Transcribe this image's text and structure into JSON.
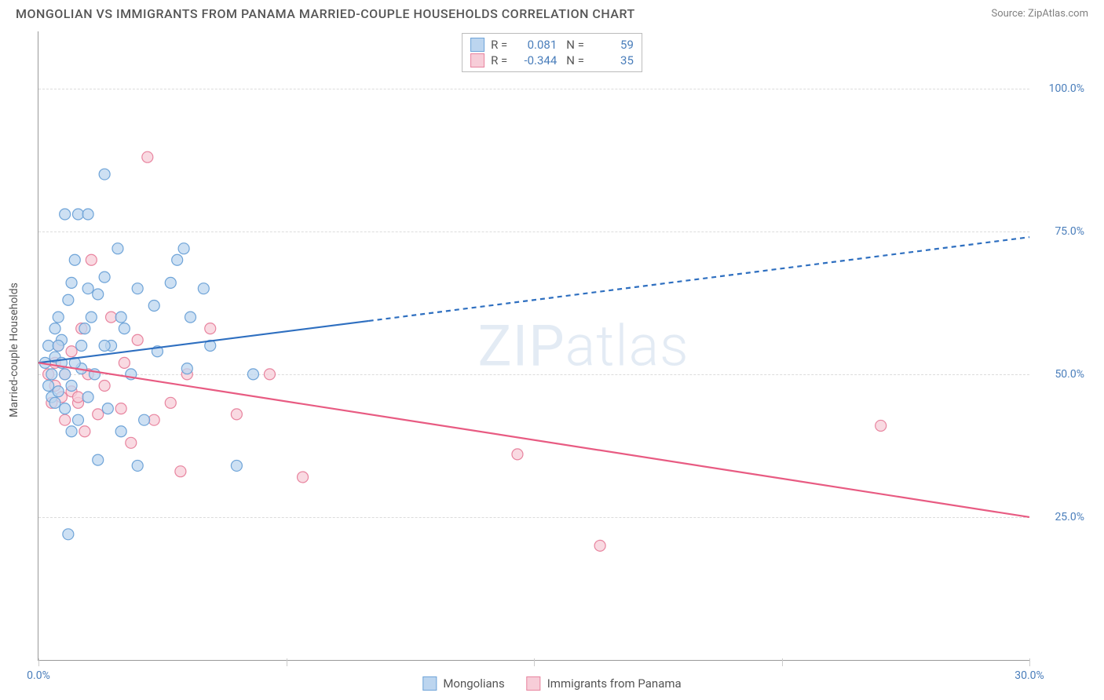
{
  "header": {
    "title": "MONGOLIAN VS IMMIGRANTS FROM PANAMA MARRIED-COUPLE HOUSEHOLDS CORRELATION CHART",
    "source": "Source: ZipAtlas.com"
  },
  "axes": {
    "y_label": "Married-couple Households",
    "x_min": 0,
    "x_max": 30,
    "y_min": 0,
    "y_max": 110,
    "y_ticks": [
      {
        "v": 25,
        "label": "25.0%"
      },
      {
        "v": 50,
        "label": "50.0%"
      },
      {
        "v": 75,
        "label": "75.0%"
      },
      {
        "v": 100,
        "label": "100.0%"
      }
    ],
    "x_ticks": [
      {
        "v": 0,
        "label": "0.0%"
      },
      {
        "v": 7.5,
        "label": ""
      },
      {
        "v": 15,
        "label": ""
      },
      {
        "v": 22.5,
        "label": ""
      },
      {
        "v": 30,
        "label": "30.0%"
      }
    ]
  },
  "series": {
    "a": {
      "name": "Mongolians",
      "fill": "#bcd5ef",
      "stroke": "#6fa4d8",
      "line_color": "#2e6fc0",
      "r_value": "0.081",
      "n_value": "59",
      "regression": {
        "x1": 0,
        "y1": 52,
        "x2": 30,
        "y2": 74
      },
      "solid_until_x": 10,
      "points": [
        [
          0.2,
          52
        ],
        [
          0.3,
          48
        ],
        [
          0.3,
          55
        ],
        [
          0.4,
          46
        ],
        [
          0.4,
          50
        ],
        [
          0.5,
          53
        ],
        [
          0.5,
          58
        ],
        [
          0.5,
          45
        ],
        [
          0.6,
          60
        ],
        [
          0.6,
          47
        ],
        [
          0.7,
          52
        ],
        [
          0.7,
          56
        ],
        [
          0.8,
          44
        ],
        [
          0.8,
          50
        ],
        [
          0.8,
          78
        ],
        [
          0.9,
          63
        ],
        [
          1.0,
          66
        ],
        [
          1.0,
          48
        ],
        [
          1.0,
          40
        ],
        [
          1.1,
          70
        ],
        [
          1.2,
          42
        ],
        [
          1.2,
          78
        ],
        [
          1.3,
          55
        ],
        [
          1.3,
          51
        ],
        [
          1.4,
          58
        ],
        [
          1.5,
          65
        ],
        [
          1.5,
          46
        ],
        [
          1.6,
          60
        ],
        [
          1.7,
          50
        ],
        [
          1.8,
          35
        ],
        [
          1.8,
          64
        ],
        [
          2.0,
          67
        ],
        [
          2.0,
          85
        ],
        [
          2.1,
          44
        ],
        [
          2.2,
          55
        ],
        [
          2.4,
          72
        ],
        [
          2.5,
          40
        ],
        [
          2.6,
          58
        ],
        [
          2.8,
          50
        ],
        [
          3.0,
          65
        ],
        [
          3.0,
          34
        ],
        [
          3.2,
          42
        ],
        [
          3.5,
          62
        ],
        [
          3.6,
          54
        ],
        [
          4.0,
          66
        ],
        [
          4.2,
          70
        ],
        [
          4.4,
          72
        ],
        [
          4.5,
          51
        ],
        [
          4.6,
          60
        ],
        [
          5.0,
          65
        ],
        [
          5.2,
          55
        ],
        [
          6.0,
          34
        ],
        [
          6.5,
          50
        ],
        [
          0.9,
          22
        ],
        [
          1.5,
          78
        ],
        [
          2.0,
          55
        ],
        [
          2.5,
          60
        ],
        [
          0.6,
          55
        ],
        [
          1.1,
          52
        ]
      ]
    },
    "b": {
      "name": "Immigrants from Panama",
      "fill": "#f7cdd8",
      "stroke": "#e8849f",
      "line_color": "#e85b82",
      "r_value": "-0.344",
      "n_value": "35",
      "regression": {
        "x1": 0,
        "y1": 52,
        "x2": 30,
        "y2": 25
      },
      "solid_until_x": 30,
      "points": [
        [
          0.3,
          50
        ],
        [
          0.4,
          45
        ],
        [
          0.5,
          48
        ],
        [
          0.5,
          52
        ],
        [
          0.6,
          55
        ],
        [
          0.7,
          46
        ],
        [
          0.8,
          50
        ],
        [
          0.8,
          42
        ],
        [
          1.0,
          54
        ],
        [
          1.0,
          47
        ],
        [
          1.2,
          45
        ],
        [
          1.3,
          58
        ],
        [
          1.4,
          40
        ],
        [
          1.5,
          50
        ],
        [
          1.6,
          70
        ],
        [
          1.8,
          43
        ],
        [
          2.0,
          48
        ],
        [
          2.2,
          60
        ],
        [
          2.5,
          44
        ],
        [
          2.6,
          52
        ],
        [
          2.8,
          38
        ],
        [
          3.0,
          56
        ],
        [
          3.3,
          88
        ],
        [
          3.5,
          42
        ],
        [
          4.0,
          45
        ],
        [
          4.3,
          33
        ],
        [
          4.5,
          50
        ],
        [
          5.2,
          58
        ],
        [
          6.0,
          43
        ],
        [
          7.0,
          50
        ],
        [
          8.0,
          32
        ],
        [
          14.5,
          36
        ],
        [
          17.0,
          20
        ],
        [
          25.5,
          41
        ],
        [
          1.2,
          46
        ]
      ]
    }
  },
  "legend_top": {
    "r_label": "R =",
    "n_label": "N ="
  },
  "bottom_legend": {
    "a": "Mongolians",
    "b": "Immigrants from Panama"
  },
  "watermark": "ZIPatlas",
  "styling": {
    "point_radius": 7,
    "point_stroke_width": 1.2,
    "line_width": 2.2,
    "dash": "6,5"
  }
}
